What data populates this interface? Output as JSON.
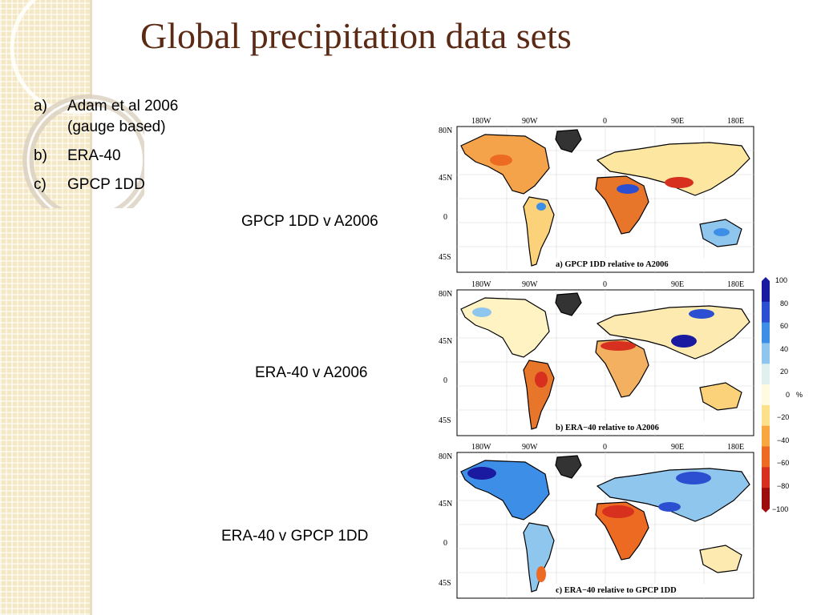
{
  "slide": {
    "title": "Global precipitation data sets",
    "list": [
      {
        "marker": "a)",
        "text": "Adam et al 2006 (gauge based)"
      },
      {
        "marker": "b)",
        "text": "ERA-40"
      },
      {
        "marker": "c)",
        "text": "GPCP 1DD"
      }
    ]
  },
  "captions": {
    "a": "GPCP 1DD v A2006",
    "b": "ERA-40 v A2006",
    "c": "ERA-40 v GPCP 1DD"
  },
  "maps": {
    "lon_labels": [
      "180W",
      "90W",
      "0",
      "90E",
      "180E"
    ],
    "lat_labels": [
      "80N",
      "45N",
      "0",
      "45S"
    ],
    "panel_titles": {
      "a": "a) GPCP 1DD relative to A2006",
      "b": "b) ERA−40 relative to A2006",
      "c": "c) ERA−40 relative to GPCP 1DD"
    }
  },
  "colorbar": {
    "ticks": [
      "100",
      "80",
      "60",
      "40",
      "20",
      "0",
      "−20",
      "−40",
      "−60",
      "−80",
      "−100"
    ],
    "unit": "%",
    "colors": [
      "#1a1aa0",
      "#2b4fd0",
      "#3c8ee6",
      "#8fc6ee",
      "#e0f0ee",
      "#fffbe0",
      "#fde08a",
      "#f8a640",
      "#ec6a22",
      "#d7301f",
      "#9e0d0d"
    ]
  }
}
